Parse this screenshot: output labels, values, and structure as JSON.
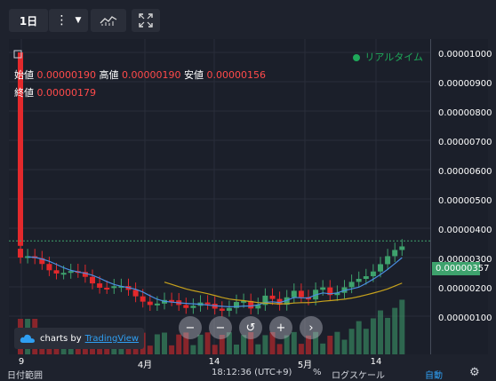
{
  "toolbar": {
    "interval_label": "1日",
    "more_icon": "vertical-dots-icon",
    "dropdown_icon": "chevron-down-icon",
    "indicators_icon": "chart-indicators-icon",
    "fullscreen_icon": "fullscreen-icon"
  },
  "legend": {
    "open_label": "始値",
    "open_value": "0.00000190",
    "high_label": "高値",
    "high_value": "0.00000190",
    "low_label": "安値",
    "low_value": "0.00000156",
    "close_label": "終値",
    "close_value": "0.00000179",
    "realtime_label": "リアルタイム"
  },
  "price_axis": {
    "labels": [
      "0.00001000",
      "0.00000900",
      "0.00000800",
      "0.00000700",
      "0.00000600",
      "0.00000500",
      "0.00000400",
      "0.00000300",
      "0.00000200",
      "0.00000100"
    ],
    "current_price": "0.00000357"
  },
  "time_axis": {
    "labels": [
      "9",
      "4月",
      "14",
      "5月",
      "14"
    ]
  },
  "branding": {
    "charts_by": "charts by",
    "tradingview": "TradingView"
  },
  "bottom_bar": {
    "date_range": "日付範囲",
    "clock": "18:12:36 (UTC+9)",
    "percent": "%",
    "log_scale": "ログスケール",
    "auto": "自動",
    "settings_icon": "gear-icon"
  },
  "colors": {
    "up": "#3ea26d",
    "down": "#e3292c",
    "ma_short": "#4a8fe3",
    "ma_long": "#c7a21c",
    "realtime": "#1fa85a",
    "link": "#2f9ff2"
  }
}
